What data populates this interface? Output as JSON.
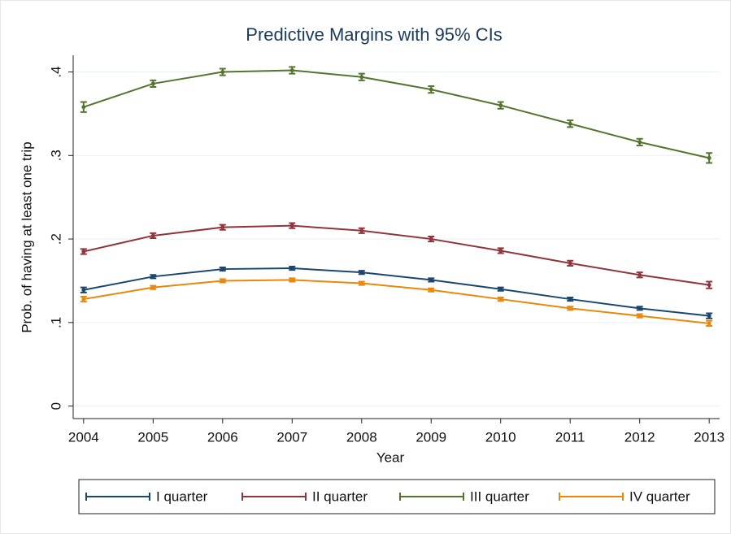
{
  "chart_data": {
    "type": "line",
    "title": "Predictive Margins with 95% CIs",
    "x_label": "Year",
    "y_label": "Prob. of having at least one trip",
    "x": [
      2004,
      2005,
      2006,
      2007,
      2008,
      2009,
      2010,
      2011,
      2012,
      2013
    ],
    "series": [
      {
        "name": "I quarter",
        "color": "#1a476f",
        "values": [
          0.139,
          0.155,
          0.164,
          0.165,
          0.16,
          0.151,
          0.14,
          0.128,
          0.117,
          0.108
        ],
        "errors": [
          0.003,
          0.002,
          0.002,
          0.002,
          0.002,
          0.002,
          0.002,
          0.002,
          0.002,
          0.003
        ]
      },
      {
        "name": "II quarter",
        "color": "#90353b",
        "values": [
          0.185,
          0.204,
          0.214,
          0.216,
          0.21,
          0.2,
          0.186,
          0.171,
          0.157,
          0.145
        ],
        "errors": [
          0.003,
          0.003,
          0.003,
          0.003,
          0.003,
          0.003,
          0.003,
          0.003,
          0.003,
          0.004
        ]
      },
      {
        "name": "III quarter",
        "color": "#55752f",
        "values": [
          0.358,
          0.386,
          0.4,
          0.402,
          0.394,
          0.379,
          0.36,
          0.338,
          0.316,
          0.297
        ],
        "errors": [
          0.006,
          0.004,
          0.004,
          0.004,
          0.004,
          0.004,
          0.004,
          0.004,
          0.004,
          0.006
        ]
      },
      {
        "name": "IV quarter",
        "color": "#e8880c",
        "values": [
          0.128,
          0.142,
          0.15,
          0.151,
          0.147,
          0.139,
          0.128,
          0.117,
          0.108,
          0.099
        ],
        "errors": [
          0.003,
          0.002,
          0.002,
          0.002,
          0.002,
          0.002,
          0.002,
          0.002,
          0.002,
          0.003
        ]
      }
    ],
    "xlim": [
      2003.85,
      2013.15
    ],
    "xticks": [
      2004,
      2005,
      2006,
      2007,
      2008,
      2009,
      2010,
      2011,
      2012,
      2013
    ],
    "ylim": [
      -0.015,
      0.42
    ],
    "yticks": [
      0,
      {
        "value": 0.1,
        "label": ".1"
      },
      {
        "value": 0.2,
        "label": ".2"
      },
      {
        "value": 0.3,
        "label": ".3"
      },
      {
        "value": 0.4,
        "label": ".4"
      }
    ],
    "grid": true,
    "legend": "bottom"
  }
}
